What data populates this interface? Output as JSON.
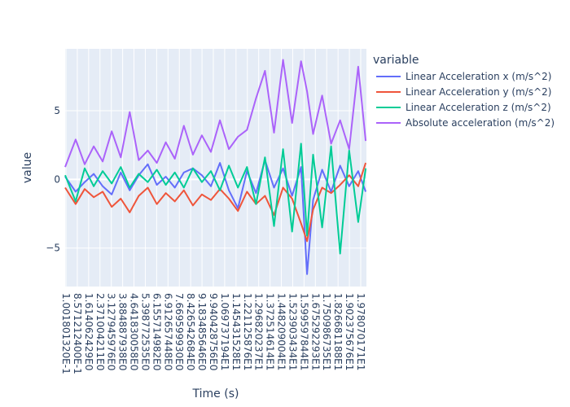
{
  "chart_data": {
    "type": "line",
    "title": "",
    "xlabel": "Time (s)",
    "ylabel": "value",
    "ylim": [
      -7.8,
      9.5
    ],
    "yticks": [
      -5,
      0,
      5
    ],
    "grid": true,
    "legend": {
      "title": "variable",
      "placement": "right"
    },
    "x_tick_labels": [
      "1.001801320E-1",
      "8.571212400E-1",
      "1.614062429E0",
      "2.371004211E0",
      "3.127945976E0",
      "3.884887938E0",
      "4.641830058E0",
      "5.398772535E0",
      "6.155714982E0",
      "6.912657448E0",
      "7.669599930E0",
      "8.426542684E0",
      "9.183485646E0",
      "9.940428756E0",
      "1.069737194E1",
      "1.145431528E1",
      "1.221125876E1",
      "1.296820237E1",
      "1.372514614E1",
      "1.448209004E1",
      "1.523903434E1",
      "1.599597844E1",
      "1.675292293E1",
      "1.750986735E1",
      "1.826681188E1",
      "1.902375676E1",
      "1.978070171E1"
    ],
    "x_range": [
      0.100180132,
      20.15
    ],
    "series": [
      {
        "name": "Linear Acceleration x (m/s^2)",
        "color": "#636efa",
        "x": [
          0.1,
          0.8,
          1.4,
          2.0,
          2.6,
          3.2,
          3.8,
          4.4,
          5.0,
          5.6,
          6.2,
          6.8,
          7.4,
          8.0,
          8.6,
          9.2,
          9.8,
          10.4,
          11.0,
          11.6,
          12.2,
          12.8,
          13.4,
          14.0,
          14.6,
          15.2,
          15.8,
          16.2,
          16.6,
          17.2,
          17.8,
          18.4,
          19.0,
          19.6,
          20.1
        ],
        "y": [
          0.2,
          -0.9,
          -0.2,
          0.4,
          -0.5,
          -1.1,
          0.5,
          -0.8,
          0.3,
          1.1,
          -0.4,
          0.2,
          -0.6,
          0.5,
          0.8,
          0.3,
          -0.5,
          1.2,
          -0.8,
          -2.1,
          0.6,
          -1.0,
          1.4,
          -0.6,
          0.8,
          -1.2,
          0.9,
          -6.9,
          -1.5,
          0.7,
          -0.9,
          1.0,
          -0.5,
          0.6,
          -0.9
        ]
      },
      {
        "name": "Linear Acceleration y (m/s^2)",
        "color": "#ef553b",
        "x": [
          0.1,
          0.8,
          1.4,
          2.0,
          2.6,
          3.2,
          3.8,
          4.4,
          5.0,
          5.6,
          6.2,
          6.8,
          7.4,
          8.0,
          8.6,
          9.2,
          9.8,
          10.4,
          11.0,
          11.6,
          12.2,
          12.8,
          13.4,
          14.0,
          14.6,
          15.2,
          15.8,
          16.2,
          16.6,
          17.2,
          17.8,
          18.4,
          19.0,
          19.6,
          20.1
        ],
        "y": [
          -0.6,
          -1.8,
          -0.7,
          -1.3,
          -0.9,
          -2.0,
          -1.4,
          -2.4,
          -1.2,
          -0.6,
          -1.8,
          -1.0,
          -1.6,
          -0.8,
          -1.9,
          -1.1,
          -1.5,
          -0.7,
          -1.4,
          -2.3,
          -0.9,
          -1.8,
          -1.2,
          -2.6,
          -0.6,
          -1.4,
          -3.2,
          -4.5,
          -2.2,
          -0.6,
          -1.0,
          -0.4,
          0.3,
          -0.5,
          1.2
        ]
      },
      {
        "name": "Linear Acceleration z (m/s^2)",
        "color": "#00cc96",
        "x": [
          0.1,
          0.8,
          1.4,
          2.0,
          2.6,
          3.2,
          3.8,
          4.4,
          5.0,
          5.6,
          6.2,
          6.8,
          7.4,
          8.0,
          8.6,
          9.2,
          9.8,
          10.4,
          11.0,
          11.6,
          12.2,
          12.8,
          13.4,
          14.0,
          14.6,
          15.2,
          15.8,
          16.2,
          16.6,
          17.2,
          17.8,
          18.4,
          19.0,
          19.6,
          20.1
        ],
        "y": [
          0.3,
          -1.6,
          0.8,
          -0.5,
          0.6,
          -0.3,
          0.9,
          -0.6,
          0.4,
          -0.2,
          0.7,
          -0.4,
          0.5,
          -0.6,
          0.8,
          -0.2,
          0.6,
          -0.8,
          1.0,
          -0.6,
          0.9,
          -1.8,
          1.6,
          -3.4,
          2.2,
          -3.8,
          2.6,
          -4.1,
          1.8,
          -3.5,
          2.4,
          -5.4,
          2.1,
          -3.1,
          0.8
        ]
      },
      {
        "name": "Absolute acceleration (m/s^2)",
        "color": "#ab63fa",
        "x": [
          0.1,
          0.8,
          1.4,
          2.0,
          2.6,
          3.2,
          3.8,
          4.4,
          5.0,
          5.6,
          6.2,
          6.8,
          7.4,
          8.0,
          8.6,
          9.2,
          9.8,
          10.4,
          11.0,
          11.6,
          12.2,
          12.8,
          13.4,
          14.0,
          14.6,
          15.2,
          15.8,
          16.2,
          16.6,
          17.2,
          17.8,
          18.4,
          19.0,
          19.6,
          20.1
        ],
        "y": [
          0.9,
          2.9,
          1.1,
          2.4,
          1.3,
          3.5,
          1.6,
          4.9,
          1.4,
          2.1,
          1.2,
          2.7,
          1.5,
          3.9,
          1.8,
          3.2,
          2.0,
          4.3,
          2.2,
          3.1,
          3.6,
          5.9,
          7.9,
          3.4,
          8.7,
          4.1,
          8.6,
          6.4,
          3.3,
          6.1,
          2.6,
          4.3,
          2.2,
          8.2,
          2.8
        ]
      }
    ]
  }
}
